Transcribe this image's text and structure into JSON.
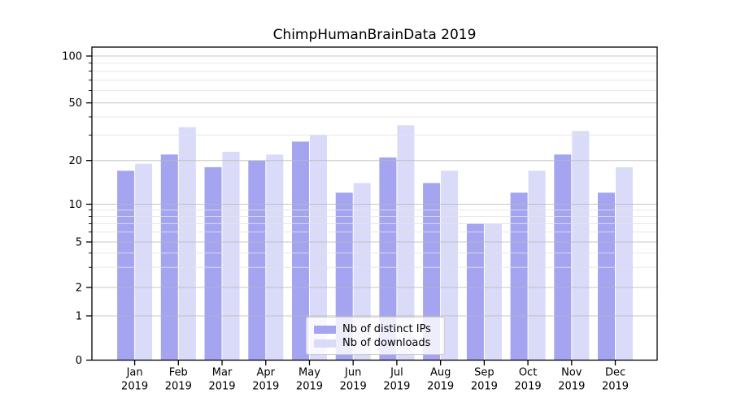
{
  "chart_data": {
    "type": "bar",
    "title": "ChimpHumanBrainData 2019",
    "categories": [
      "Jan",
      "Feb",
      "Mar",
      "Apr",
      "May",
      "Jun",
      "Jul",
      "Aug",
      "Sep",
      "Oct",
      "Nov",
      "Dec"
    ],
    "x_tick_second_line": "2019",
    "series": [
      {
        "name": "Nb of distinct IPs",
        "color": "#a4a4f1",
        "values": [
          17,
          22,
          18,
          20,
          27,
          12,
          21,
          14,
          7,
          12,
          22,
          12
        ]
      },
      {
        "name": "Nb of downloads",
        "color": "#dadaf9",
        "values": [
          19,
          34,
          23,
          22,
          30,
          14,
          35,
          17,
          7,
          17,
          32,
          18
        ]
      }
    ],
    "xlabel": "",
    "ylabel": "",
    "y_scale": "log-like with 0 baseline",
    "y_ticks": [
      0,
      1,
      2,
      5,
      10,
      20,
      50,
      100
    ],
    "y_minor_ticks": [
      3,
      4,
      6,
      7,
      8,
      9,
      30,
      40,
      60,
      70,
      80,
      90
    ],
    "ylim": [
      0,
      115
    ],
    "grid": "both",
    "legend_position": "lower center inside plot"
  },
  "colors": {
    "bar_distinct_ips": "#a4a4f1",
    "bar_downloads": "#dadaf9",
    "grid_major": "rgba(185,185,185,0.8)",
    "grid_minor": "rgba(228,228,228,0.85)",
    "axis": "#000000",
    "text": "#000000",
    "legend_border": "#cccccc",
    "legend_bg": "rgba(255,255,255,0.8)"
  }
}
